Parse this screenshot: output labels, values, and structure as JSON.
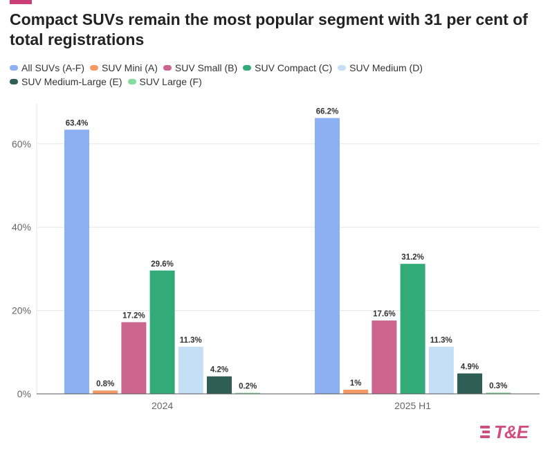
{
  "title": "Compact SUVs remain the most popular segment with 31 per cent of total registrations",
  "logo_text": "T&E",
  "chart_data": {
    "type": "bar",
    "title": "Compact SUVs remain the most popular segment with 31 per cent of total registrations",
    "categories": [
      "2024",
      "2025 H1"
    ],
    "ylim": [
      0,
      70
    ],
    "yticks": [
      0,
      20,
      40,
      60
    ],
    "ytick_labels": [
      "0%",
      "20%",
      "40%",
      "60%"
    ],
    "grid": true,
    "legend_position": "top",
    "series": [
      {
        "name": "All SUVs (A-F)",
        "color": "#8db0f2",
        "values": [
          63.4,
          66.2
        ],
        "labels": [
          "63.4%",
          "66.2%"
        ]
      },
      {
        "name": "SUV Mini (A)",
        "color": "#f59a66",
        "values": [
          0.8,
          1.0
        ],
        "labels": [
          "0.8%",
          "1%"
        ]
      },
      {
        "name": "SUV Small (B)",
        "color": "#cc6690",
        "values": [
          17.2,
          17.6
        ],
        "labels": [
          "17.2%",
          "17.6%"
        ]
      },
      {
        "name": "SUV Compact (C)",
        "color": "#33ab78",
        "values": [
          29.6,
          31.2
        ],
        "labels": [
          "29.6%",
          "31.2%"
        ]
      },
      {
        "name": "SUV Medium (D)",
        "color": "#c5e0f6",
        "values": [
          11.3,
          11.3
        ],
        "labels": [
          "11.3%",
          "11.3%"
        ]
      },
      {
        "name": "SUV Medium-Large (E)",
        "color": "#2e5e55",
        "values": [
          4.2,
          4.9
        ],
        "labels": [
          "4.2%",
          "4.9%"
        ]
      },
      {
        "name": "SUV Large (F)",
        "color": "#86dc9e",
        "values": [
          0.2,
          0.3
        ],
        "labels": [
          "0.2%",
          "0.3%"
        ]
      }
    ]
  }
}
